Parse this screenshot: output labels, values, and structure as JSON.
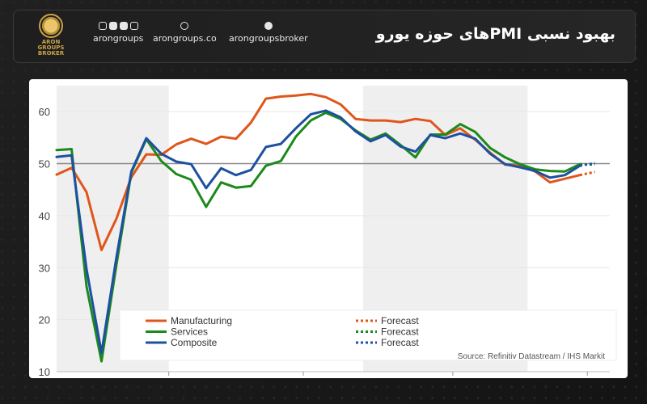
{
  "header": {
    "title": "بهبود نسبی PMIهای حوزه یورو",
    "logo_text": "ARON GROUPS BROKER",
    "social": [
      {
        "label": "arongroups",
        "icons": [
          "instagram-icon",
          "youtube-icon",
          "linkedin-icon",
          "other-icon"
        ]
      },
      {
        "label": "arongroups.co",
        "icons": [
          "globe-icon"
        ]
      },
      {
        "label": "arongroupsbroker",
        "icons": [
          "telegram-icon"
        ]
      }
    ]
  },
  "chart_data": {
    "type": "line",
    "ylim": [
      10,
      65
    ],
    "yticks": [
      10,
      20,
      30,
      40,
      50,
      60
    ],
    "reference_line": 50,
    "grid": true,
    "shaded_bands": true,
    "legend_position": "bottom-left",
    "source": "Source: Refinitiv Datastream / IHS Markit",
    "series": [
      {
        "name": "Manufacturing",
        "color": "#e0551a",
        "values": [
          47.9,
          49.2,
          44.5,
          33.4,
          39.4,
          47.4,
          51.8,
          51.7,
          53.7,
          54.8,
          53.8,
          55.2,
          54.8,
          57.9,
          62.5,
          62.9,
          63.1,
          63.4,
          62.8,
          61.4,
          58.6,
          58.3,
          58.3,
          58.0,
          58.6,
          58.2,
          55.5,
          56.8,
          54.6,
          52.1,
          49.8,
          49.6,
          48.5,
          46.4,
          47.1,
          47.8
        ],
        "forecast": [
          47.8,
          48.4
        ]
      },
      {
        "name": "Services",
        "color": "#1a8a1a",
        "values": [
          52.6,
          52.8,
          26.4,
          12.0,
          30.5,
          48.3,
          54.7,
          50.5,
          48.0,
          46.9,
          41.7,
          46.4,
          45.4,
          45.7,
          49.6,
          50.5,
          55.2,
          58.3,
          59.8,
          58.6,
          56.4,
          54.6,
          55.8,
          53.6,
          51.2,
          55.6,
          55.6,
          57.6,
          56.1,
          53.0,
          51.2,
          49.9,
          48.9,
          48.6,
          48.5,
          49.9
        ],
        "forecast": [
          49.9,
          49.8
        ]
      },
      {
        "name": "Composite",
        "color": "#1e50a0",
        "values": [
          51.3,
          51.6,
          29.7,
          13.6,
          31.9,
          48.5,
          54.9,
          51.9,
          50.4,
          49.9,
          45.3,
          49.1,
          47.8,
          48.8,
          53.2,
          53.8,
          56.8,
          59.5,
          60.2,
          58.9,
          56.2,
          54.3,
          55.5,
          53.3,
          52.3,
          55.5,
          54.9,
          55.8,
          54.8,
          51.9,
          49.9,
          49.3,
          48.6,
          47.3,
          47.8,
          49.6
        ],
        "forecast": [
          49.6,
          50.1
        ]
      }
    ],
    "legend": [
      {
        "label": "Manufacturing",
        "style": "solid",
        "color": "#e0551a"
      },
      {
        "label": "Services",
        "style": "solid",
        "color": "#1a8a1a"
      },
      {
        "label": "Composite",
        "style": "solid",
        "color": "#1e50a0"
      },
      {
        "label": "Forecast",
        "style": "dotted",
        "color": "#e0551a"
      },
      {
        "label": "Forecast",
        "style": "dotted",
        "color": "#1a8a1a"
      },
      {
        "label": "Forecast",
        "style": "dotted",
        "color": "#1e50a0"
      }
    ]
  }
}
